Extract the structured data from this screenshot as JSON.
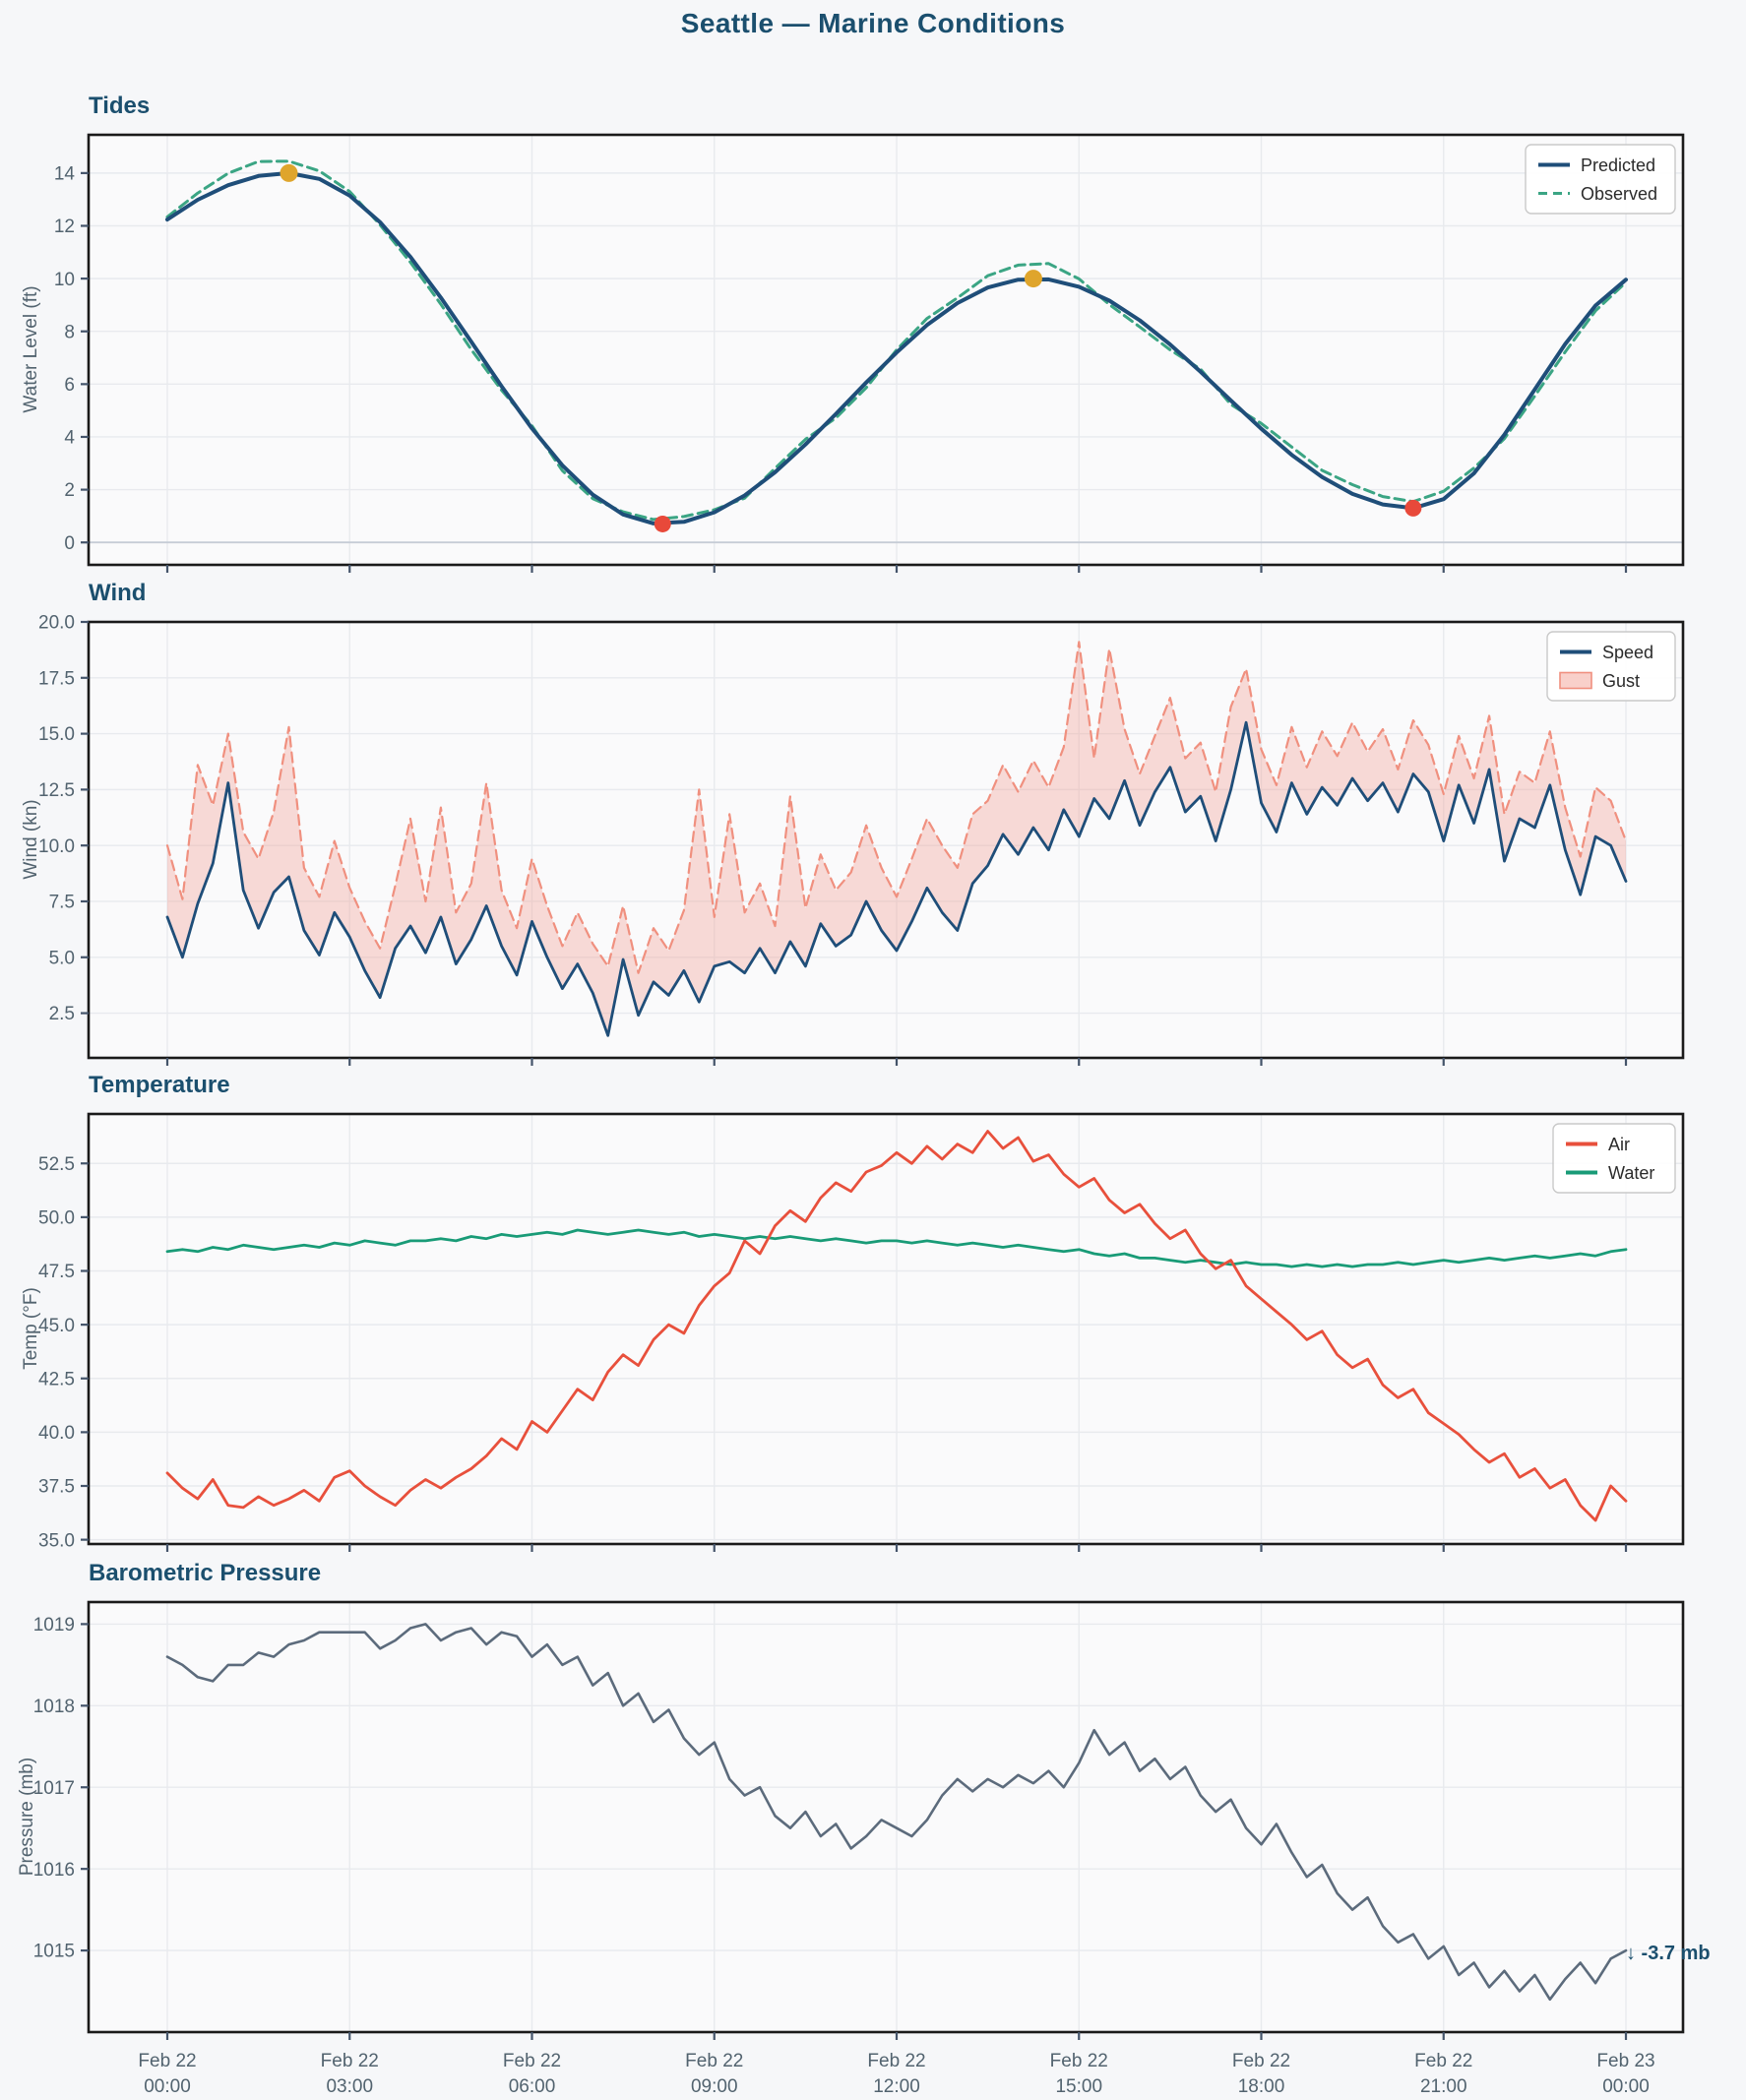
{
  "title": "Seattle — Marine Conditions",
  "colors": {
    "background": "#f6f7f9",
    "axes_bg": "#fafafb",
    "grid": "#e8eaee",
    "zero_line": "#c6ccd6",
    "spine": "#1a1a1a",
    "tick_label": "#52636f",
    "title_text": "#1b4f6e",
    "predicted": "#1f4e79",
    "observed": "#3ba584",
    "high_marker": "#dfa52c",
    "low_marker": "#e8493a",
    "speed": "#1f4e79",
    "gust_line": "#f0907f",
    "gust_fill": "rgba(242,150,138,0.32)",
    "air": "#e8503c",
    "water": "#199b77",
    "pressure": "#5c6b7c"
  },
  "x_axis": {
    "hours": [
      0,
      3,
      6,
      9,
      12,
      15,
      18,
      21,
      24
    ],
    "labels": [
      [
        "Feb 22",
        "00:00"
      ],
      [
        "Feb 22",
        "03:00"
      ],
      [
        "Feb 22",
        "06:00"
      ],
      [
        "Feb 22",
        "09:00"
      ],
      [
        "Feb 22",
        "12:00"
      ],
      [
        "Feb 22",
        "15:00"
      ],
      [
        "Feb 22",
        "18:00"
      ],
      [
        "Feb 22",
        "21:00"
      ],
      [
        "Feb 23",
        "00:00"
      ]
    ]
  },
  "chart_data": [
    {
      "id": "tides",
      "type": "line",
      "title": "Tides",
      "ylabel": "Water Level (ft)",
      "ylim": [
        -0.85,
        15.45
      ],
      "ytick_values": [
        0,
        2,
        4,
        6,
        8,
        10,
        12,
        14
      ],
      "ytick_labels": [
        "0",
        "2",
        "4",
        "6",
        "8",
        "10",
        "12",
        "14"
      ],
      "x_step_hours": 0.5,
      "zero_line_value": 0,
      "legend_position": "top-right",
      "series": [
        {
          "name": "Predicted",
          "color": "#1f4e79",
          "dash": "solid",
          "width": 4,
          "values": [
            12.24,
            12.99,
            13.54,
            13.89,
            14.0,
            13.78,
            13.15,
            12.14,
            10.82,
            9.28,
            7.61,
            5.92,
            4.32,
            2.92,
            1.81,
            1.06,
            0.72,
            0.78,
            1.14,
            1.78,
            2.66,
            3.71,
            4.87,
            6.06,
            7.2,
            8.24,
            9.07,
            9.66,
            9.96,
            9.97,
            9.69,
            9.17,
            8.42,
            7.5,
            6.47,
            5.38,
            4.31,
            3.32,
            2.48,
            1.84,
            1.44,
            1.3,
            1.64,
            2.62,
            4.08,
            5.8,
            7.52,
            8.98,
            9.96
          ]
        },
        {
          "name": "Observed",
          "color": "#3ba584",
          "dash": "dashed",
          "width": 3,
          "values": [
            12.34,
            13.24,
            13.99,
            14.44,
            14.45,
            14.08,
            13.3,
            12.04,
            10.62,
            9.03,
            7.31,
            5.77,
            4.42,
            2.72,
            1.66,
            1.16,
            0.87,
            0.98,
            1.24,
            1.68,
            2.81,
            3.91,
            4.72,
            5.86,
            7.3,
            8.49,
            9.27,
            10.11,
            10.51,
            10.57,
            9.99,
            9.02,
            8.17,
            7.3,
            6.57,
            5.23,
            4.51,
            3.62,
            2.73,
            2.19,
            1.74,
            1.55,
            1.94,
            2.82,
            3.93,
            5.55,
            7.22,
            8.78,
            9.86
          ]
        }
      ],
      "extremes": {
        "highs": [
          {
            "t": 2.0,
            "v": 14.0
          },
          {
            "t": 14.25,
            "v": 10.0
          }
        ],
        "lows": [
          {
            "t": 8.15,
            "v": 0.7
          },
          {
            "t": 20.5,
            "v": 1.3
          }
        ]
      },
      "legend": [
        {
          "label": "Predicted",
          "swatch": "line",
          "color": "#1f4e79"
        },
        {
          "label": "Observed",
          "swatch": "dashed-line",
          "color": "#3ba584"
        }
      ]
    },
    {
      "id": "wind",
      "type": "line",
      "title": "Wind",
      "ylabel": "Wind (kn)",
      "ylim": [
        0.5,
        20.0
      ],
      "ytick_values": [
        2.5,
        5.0,
        7.5,
        10.0,
        12.5,
        15.0,
        17.5,
        20.0
      ],
      "ytick_labels": [
        "2.5",
        "5.0",
        "7.5",
        "10.0",
        "12.5",
        "15.0",
        "17.5",
        "20.0"
      ],
      "x_step_hours": 0.25,
      "fill_between": {
        "upper": "Gust",
        "lower": "Speed",
        "color": "rgba(242,150,138,0.32)"
      },
      "legend_position": "top-right",
      "series": [
        {
          "name": "Speed",
          "color": "#1f4e79",
          "dash": "solid",
          "width": 2.8,
          "values": [
            6.8,
            5.0,
            7.4,
            9.2,
            12.8,
            8.0,
            6.3,
            7.9,
            8.6,
            6.2,
            5.1,
            7.0,
            5.9,
            4.4,
            3.2,
            5.4,
            6.4,
            5.2,
            6.8,
            4.7,
            5.8,
            7.3,
            5.5,
            4.2,
            6.6,
            5.0,
            3.6,
            4.7,
            3.4,
            1.5,
            4.9,
            2.4,
            3.9,
            3.3,
            4.4,
            3.0,
            4.6,
            4.8,
            4.3,
            5.4,
            4.3,
            5.7,
            4.6,
            6.5,
            5.5,
            6.0,
            7.5,
            6.2,
            5.3,
            6.6,
            8.1,
            7.0,
            6.2,
            8.3,
            9.1,
            10.5,
            9.6,
            10.8,
            9.8,
            11.6,
            10.4,
            12.1,
            11.2,
            12.9,
            10.9,
            12.4,
            13.5,
            11.5,
            12.2,
            10.2,
            12.5,
            15.5,
            11.9,
            10.6,
            12.8,
            11.4,
            12.6,
            11.8,
            13.0,
            12.0,
            12.8,
            11.5,
            13.2,
            12.4,
            10.2,
            12.7,
            11.0,
            13.4,
            9.3,
            11.2,
            10.8,
            12.7,
            9.8,
            7.8,
            10.4,
            10.0,
            8.4
          ]
        },
        {
          "name": "Gust",
          "color": "#f0907f",
          "dash": "dashed",
          "width": 2.2,
          "values": [
            10.0,
            7.6,
            13.6,
            11.8,
            15.0,
            10.6,
            9.4,
            11.5,
            15.3,
            9.0,
            7.7,
            10.2,
            8.1,
            6.6,
            5.4,
            8.2,
            11.2,
            7.5,
            11.7,
            7.0,
            8.3,
            12.8,
            8.0,
            6.3,
            9.4,
            7.3,
            5.5,
            7.0,
            5.6,
            4.6,
            7.3,
            4.3,
            6.3,
            5.3,
            7.1,
            12.5,
            6.8,
            11.4,
            7.0,
            8.3,
            6.4,
            12.2,
            7.2,
            9.6,
            8.0,
            8.8,
            10.9,
            9.0,
            7.7,
            9.4,
            11.2,
            10.0,
            9.0,
            11.4,
            12.0,
            13.6,
            12.4,
            13.8,
            12.6,
            14.4,
            19.1,
            13.9,
            18.8,
            15.2,
            13.2,
            14.9,
            16.6,
            13.9,
            14.6,
            12.4,
            16.2,
            17.9,
            14.3,
            12.7,
            15.3,
            13.5,
            15.1,
            14.0,
            15.5,
            14.2,
            15.2,
            13.4,
            15.6,
            14.5,
            12.3,
            14.9,
            13.0,
            15.8,
            11.4,
            13.3,
            12.8,
            15.1,
            11.7,
            9.5,
            12.6,
            12.0,
            10.2
          ]
        }
      ],
      "legend": [
        {
          "label": "Speed",
          "swatch": "line",
          "color": "#1f4e79"
        },
        {
          "label": "Gust",
          "swatch": "patch",
          "color": "rgba(242,150,138,0.45)",
          "border": "#f0907f"
        }
      ]
    },
    {
      "id": "temperature",
      "type": "line",
      "title": "Temperature",
      "ylabel": "Temp (°F)",
      "ylim": [
        34.8,
        54.8
      ],
      "ytick_values": [
        35.0,
        37.5,
        40.0,
        42.5,
        45.0,
        47.5,
        50.0,
        52.5
      ],
      "ytick_labels": [
        "35.0",
        "37.5",
        "40.0",
        "42.5",
        "45.0",
        "47.5",
        "50.0",
        "52.5"
      ],
      "x_step_hours": 0.25,
      "legend_position": "top-right",
      "series": [
        {
          "name": "Air",
          "color": "#e8503c",
          "dash": "solid",
          "width": 2.8,
          "values": [
            38.1,
            37.4,
            36.9,
            37.8,
            36.6,
            36.5,
            37.0,
            36.6,
            36.9,
            37.3,
            36.8,
            37.9,
            38.2,
            37.5,
            37.0,
            36.6,
            37.3,
            37.8,
            37.4,
            37.9,
            38.3,
            38.9,
            39.7,
            39.2,
            40.5,
            40.0,
            41.0,
            42.0,
            41.5,
            42.8,
            43.6,
            43.1,
            44.3,
            45.0,
            44.6,
            45.9,
            46.8,
            47.4,
            48.9,
            48.3,
            49.6,
            50.3,
            49.8,
            50.9,
            51.6,
            51.2,
            52.1,
            52.4,
            53.0,
            52.5,
            53.3,
            52.7,
            53.4,
            53.0,
            54.0,
            53.2,
            53.7,
            52.6,
            52.9,
            52.0,
            51.4,
            51.8,
            50.8,
            50.2,
            50.6,
            49.7,
            49.0,
            49.4,
            48.3,
            47.6,
            48.0,
            46.8,
            46.2,
            45.6,
            45.0,
            44.3,
            44.7,
            43.6,
            43.0,
            43.4,
            42.2,
            41.6,
            42.0,
            40.9,
            40.4,
            39.9,
            39.2,
            38.6,
            39.0,
            37.9,
            38.3,
            37.4,
            37.8,
            36.6,
            35.9,
            37.5,
            36.8
          ]
        },
        {
          "name": "Water",
          "color": "#199b77",
          "dash": "solid",
          "width": 2.8,
          "values": [
            48.4,
            48.5,
            48.4,
            48.6,
            48.5,
            48.7,
            48.6,
            48.5,
            48.6,
            48.7,
            48.6,
            48.8,
            48.7,
            48.9,
            48.8,
            48.7,
            48.9,
            48.9,
            49.0,
            48.9,
            49.1,
            49.0,
            49.2,
            49.1,
            49.2,
            49.3,
            49.2,
            49.4,
            49.3,
            49.2,
            49.3,
            49.4,
            49.3,
            49.2,
            49.3,
            49.1,
            49.2,
            49.1,
            49.0,
            49.1,
            49.0,
            49.1,
            49.0,
            48.9,
            49.0,
            48.9,
            48.8,
            48.9,
            48.9,
            48.8,
            48.9,
            48.8,
            48.7,
            48.8,
            48.7,
            48.6,
            48.7,
            48.6,
            48.5,
            48.4,
            48.5,
            48.3,
            48.2,
            48.3,
            48.1,
            48.1,
            48.0,
            47.9,
            48.0,
            47.9,
            47.8,
            47.9,
            47.8,
            47.8,
            47.7,
            47.8,
            47.7,
            47.8,
            47.7,
            47.8,
            47.8,
            47.9,
            47.8,
            47.9,
            48.0,
            47.9,
            48.0,
            48.1,
            48.0,
            48.1,
            48.2,
            48.1,
            48.2,
            48.3,
            48.2,
            48.4,
            48.5
          ]
        }
      ],
      "legend": [
        {
          "label": "Air",
          "swatch": "line",
          "color": "#e8503c"
        },
        {
          "label": "Water",
          "swatch": "line",
          "color": "#199b77"
        }
      ]
    },
    {
      "id": "pressure",
      "type": "line",
      "title": "Barometric Pressure",
      "ylabel": "Pressure (mb)",
      "ylim": [
        1014.0,
        1019.27
      ],
      "ytick_values": [
        1015,
        1016,
        1017,
        1018,
        1019
      ],
      "ytick_labels": [
        "1015",
        "1016",
        "1017",
        "1018",
        "1019"
      ],
      "x_step_hours": 0.25,
      "annotation": {
        "text": "↓ -3.7 mb",
        "value": 1015.05
      },
      "series": [
        {
          "name": "Pressure",
          "color": "#5c6b7c",
          "dash": "solid",
          "width": 2.6,
          "values": [
            1018.6,
            1018.5,
            1018.35,
            1018.3,
            1018.5,
            1018.5,
            1018.65,
            1018.6,
            1018.75,
            1018.8,
            1018.9,
            1018.9,
            1018.9,
            1018.9,
            1018.7,
            1018.8,
            1018.95,
            1019.0,
            1018.8,
            1018.9,
            1018.95,
            1018.75,
            1018.9,
            1018.85,
            1018.6,
            1018.75,
            1018.5,
            1018.6,
            1018.25,
            1018.4,
            1018.0,
            1018.15,
            1017.8,
            1017.95,
            1017.6,
            1017.4,
            1017.55,
            1017.1,
            1016.9,
            1017.0,
            1016.65,
            1016.5,
            1016.7,
            1016.4,
            1016.55,
            1016.25,
            1016.4,
            1016.6,
            1016.5,
            1016.4,
            1016.6,
            1016.9,
            1017.1,
            1016.95,
            1017.1,
            1017.0,
            1017.15,
            1017.05,
            1017.2,
            1017.0,
            1017.3,
            1017.7,
            1017.4,
            1017.55,
            1017.2,
            1017.35,
            1017.1,
            1017.25,
            1016.9,
            1016.7,
            1016.85,
            1016.5,
            1016.3,
            1016.55,
            1016.2,
            1015.9,
            1016.05,
            1015.7,
            1015.5,
            1015.65,
            1015.3,
            1015.1,
            1015.2,
            1014.9,
            1015.05,
            1014.7,
            1014.85,
            1014.55,
            1014.75,
            1014.5,
            1014.7,
            1014.4,
            1014.65,
            1014.85,
            1014.6,
            1014.9,
            1015.0
          ]
        }
      ]
    }
  ]
}
